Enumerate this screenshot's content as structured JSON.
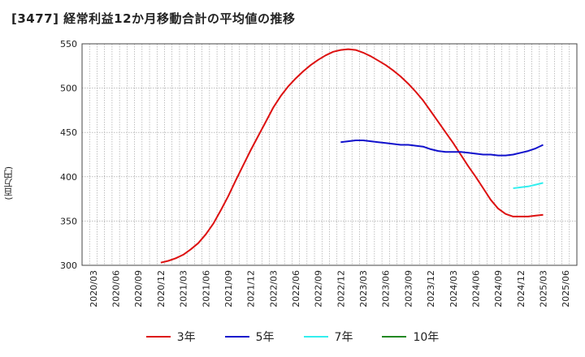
{
  "chart_data": {
    "type": "line",
    "title": "[3477]  経常利益12か月移動合計の平均値の推移",
    "ylabel": "(百万円)",
    "xlabel": "",
    "ylim": [
      300,
      550
    ],
    "yticks": [
      300,
      350,
      400,
      450,
      500,
      550
    ],
    "x_ticks": [
      "2020/03",
      "2020/06",
      "2020/09",
      "2020/12",
      "2021/03",
      "2021/06",
      "2021/09",
      "2021/12",
      "2022/03",
      "2022/06",
      "2022/09",
      "2022/12",
      "2023/03",
      "2023/06",
      "2023/09",
      "2023/12",
      "2024/03",
      "2024/06",
      "2024/09",
      "2024/12",
      "2025/03",
      "2025/06"
    ],
    "grid": true,
    "legend_position": "bottom",
    "series": [
      {
        "name": "3年",
        "color": "#dd1111",
        "x": [
          "2020/12",
          "2021/01",
          "2021/02",
          "2021/03",
          "2021/04",
          "2021/05",
          "2021/06",
          "2021/07",
          "2021/08",
          "2021/09",
          "2021/10",
          "2021/11",
          "2021/12",
          "2022/01",
          "2022/02",
          "2022/03",
          "2022/04",
          "2022/05",
          "2022/06",
          "2022/07",
          "2022/08",
          "2022/09",
          "2022/10",
          "2022/11",
          "2022/12",
          "2023/01",
          "2023/02",
          "2023/03",
          "2023/04",
          "2023/05",
          "2023/06",
          "2023/07",
          "2023/08",
          "2023/09",
          "2023/10",
          "2023/11",
          "2023/12",
          "2024/01",
          "2024/02",
          "2024/03",
          "2024/04",
          "2024/05",
          "2024/06",
          "2024/07",
          "2024/08",
          "2024/09",
          "2024/10",
          "2024/11",
          "2024/12",
          "2025/01",
          "2025/02",
          "2025/03"
        ],
        "values": [
          303,
          305,
          308,
          312,
          318,
          325,
          335,
          347,
          362,
          378,
          396,
          413,
          430,
          446,
          462,
          478,
          491,
          502,
          511,
          519,
          526,
          532,
          537,
          541,
          543,
          544,
          543,
          540,
          536,
          531,
          526,
          520,
          513,
          505,
          496,
          486,
          474,
          462,
          450,
          438,
          425,
          412,
          400,
          387,
          374,
          364,
          358,
          355,
          355,
          355,
          356,
          357
        ]
      },
      {
        "name": "5年",
        "color": "#1111cc",
        "x": [
          "2022/12",
          "2023/01",
          "2023/02",
          "2023/03",
          "2023/04",
          "2023/05",
          "2023/06",
          "2023/07",
          "2023/08",
          "2023/09",
          "2023/10",
          "2023/11",
          "2023/12",
          "2024/01",
          "2024/02",
          "2024/03",
          "2024/04",
          "2024/05",
          "2024/06",
          "2024/07",
          "2024/08",
          "2024/09",
          "2024/10",
          "2024/11",
          "2024/12",
          "2025/01",
          "2025/02",
          "2025/03"
        ],
        "values": [
          439,
          440,
          441,
          441,
          440,
          439,
          438,
          437,
          436,
          436,
          435,
          434,
          431,
          429,
          428,
          428,
          428,
          427,
          426,
          425,
          425,
          424,
          424,
          425,
          427,
          429,
          432,
          436
        ]
      },
      {
        "name": "7年",
        "color": "#33eeee",
        "x": [
          "2024/11",
          "2024/12",
          "2025/01",
          "2025/02",
          "2025/03"
        ],
        "values": [
          387,
          388,
          389,
          391,
          393
        ]
      },
      {
        "name": "10年",
        "color": "#228822",
        "x": [],
        "values": []
      }
    ]
  }
}
